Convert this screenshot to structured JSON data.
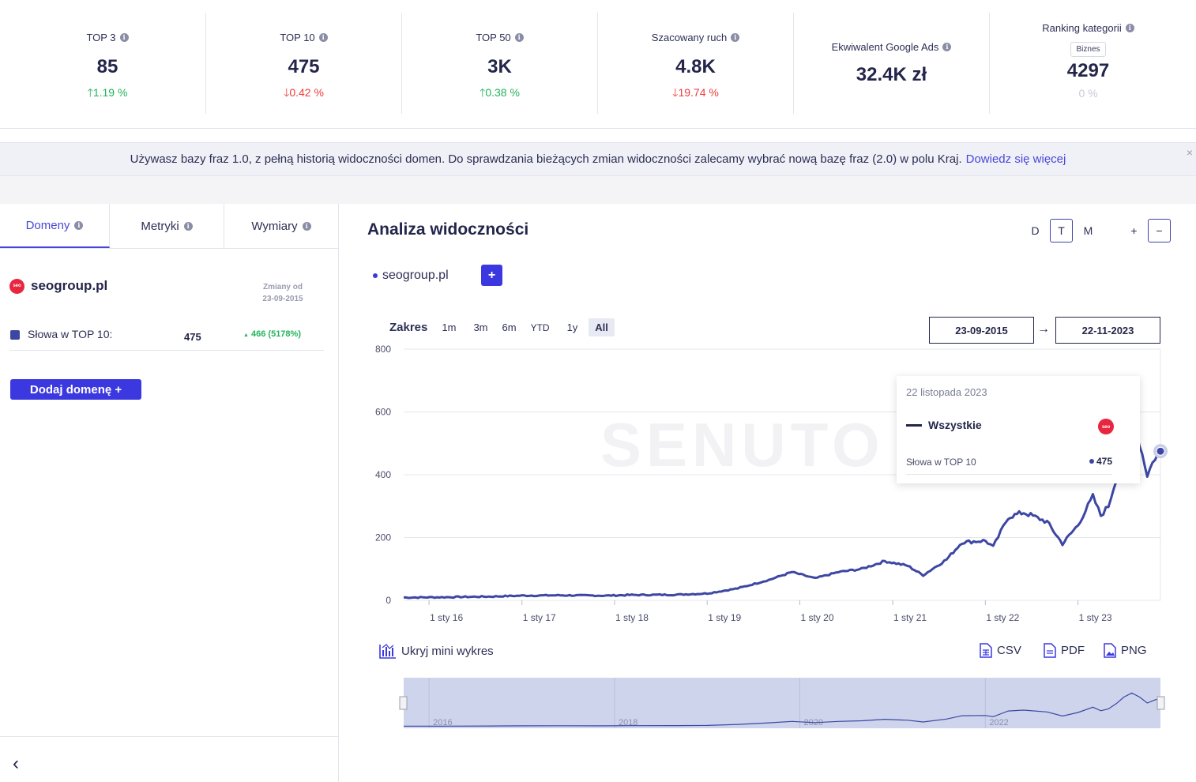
{
  "kpis": [
    {
      "label": "TOP 3",
      "value": "85",
      "change": "1.19 %",
      "direction": "up"
    },
    {
      "label": "TOP 10",
      "value": "475",
      "change": "0.42 %",
      "direction": "down"
    },
    {
      "label": "TOP 50",
      "value": "3K",
      "change": "0.38 %",
      "direction": "up"
    },
    {
      "label": "Szacowany ruch",
      "value": "4.8K",
      "change": "19.74 %",
      "direction": "down"
    },
    {
      "label": "Ekwiwalent Google Ads",
      "value": "32.4K zł"
    },
    {
      "label": "Ranking kategorii",
      "badge": "Biznes",
      "value": "4297",
      "change": "0 %"
    }
  ],
  "notice": {
    "text": "Używasz bazy fraz 1.0, z pełną historią widoczności domen. Do sprawdzania bieżących zmian widoczności zalecamy wybrać nową bazę fraz (2.0) w polu Kraj.",
    "link": "Dowiedz się więcej",
    "close": "×"
  },
  "left_panel": {
    "tabs": [
      "Domeny",
      "Metryki",
      "Wymiary"
    ],
    "domain": "seogroup.pl",
    "logo_text": "seo",
    "changes_since_label": "Zmiany od",
    "changes_since_date": "23-09-2015",
    "metric_label": "Słowa w TOP 10:",
    "metric_value": "475",
    "metric_change": "466 (5178%)",
    "add_button": "Dodaj domenę +",
    "collapse": "‹"
  },
  "main": {
    "title": "Analiza widoczności",
    "granularity": [
      "D",
      "T",
      "M"
    ],
    "granularity_selected": "T",
    "zoom_in": "+",
    "zoom_out": "−",
    "legend_domain": "seogroup.pl",
    "add_series": "+",
    "range_label": "Zakres",
    "range_buttons": [
      "1m",
      "3m",
      "6m",
      "YTD",
      "1y",
      "All"
    ],
    "range_selected": "All",
    "date_from": "23-09-2015",
    "date_to": "22-11-2023",
    "date_arrow": "→",
    "watermark": "SENUTO",
    "hide_mini": "Ukryj mini wykres",
    "exports": [
      "CSV",
      "PDF",
      "PNG"
    ]
  },
  "tooltip": {
    "date": "22 listopada 2023",
    "series": "Wszystkie",
    "metric": "Słowa w TOP 10",
    "value": "475"
  },
  "colors": {
    "accent": "#3b38e0",
    "line": "#3d47a3",
    "up": "#22b45a",
    "down": "#ef3b3b"
  },
  "chart_data": {
    "type": "line",
    "ylim": [
      0,
      800
    ],
    "yticks": [
      "0",
      "200",
      "400",
      "600",
      "800"
    ],
    "xticks": [
      "1 sty 16",
      "1 sty 17",
      "1 sty 18",
      "1 sty 19",
      "1 sty 20",
      "1 sty 21",
      "1 sty 22",
      "1 sty 23"
    ],
    "mini_xticks": [
      "2016",
      "2018",
      "2020",
      "2022"
    ],
    "series": [
      {
        "values": [
          [
            "2015-09-23",
            9
          ],
          [
            "2016-03-01",
            10
          ],
          [
            "2016-09-01",
            12
          ],
          [
            "2017-01-01",
            15
          ],
          [
            "2017-06-01",
            16
          ],
          [
            "2017-12-01",
            15
          ],
          [
            "2018-03-01",
            17
          ],
          [
            "2018-09-01",
            18
          ],
          [
            "2019-01-01",
            22
          ],
          [
            "2019-05-01",
            38
          ],
          [
            "2019-09-01",
            65
          ],
          [
            "2019-12-01",
            90
          ],
          [
            "2020-03-01",
            70
          ],
          [
            "2020-06-01",
            90
          ],
          [
            "2020-09-01",
            100
          ],
          [
            "2020-12-01",
            125
          ],
          [
            "2021-03-01",
            110
          ],
          [
            "2021-05-01",
            80
          ],
          [
            "2021-08-01",
            130
          ],
          [
            "2021-10-01",
            185
          ],
          [
            "2022-01-01",
            190
          ],
          [
            "2022-02-01",
            170
          ],
          [
            "2022-04-01",
            265
          ],
          [
            "2022-06-01",
            280
          ],
          [
            "2022-09-01",
            250
          ],
          [
            "2022-11-01",
            180
          ],
          [
            "2023-01-01",
            240
          ],
          [
            "2023-03-01",
            330
          ],
          [
            "2023-04-01",
            270
          ],
          [
            "2023-05-01",
            300
          ],
          [
            "2023-06-01",
            390
          ],
          [
            "2023-07-01",
            500
          ],
          [
            "2023-08-01",
            570
          ],
          [
            "2023-09-01",
            500
          ],
          [
            "2023-10-01",
            400
          ],
          [
            "2023-11-01",
            455
          ],
          [
            "2023-11-22",
            475
          ]
        ]
      }
    ]
  }
}
